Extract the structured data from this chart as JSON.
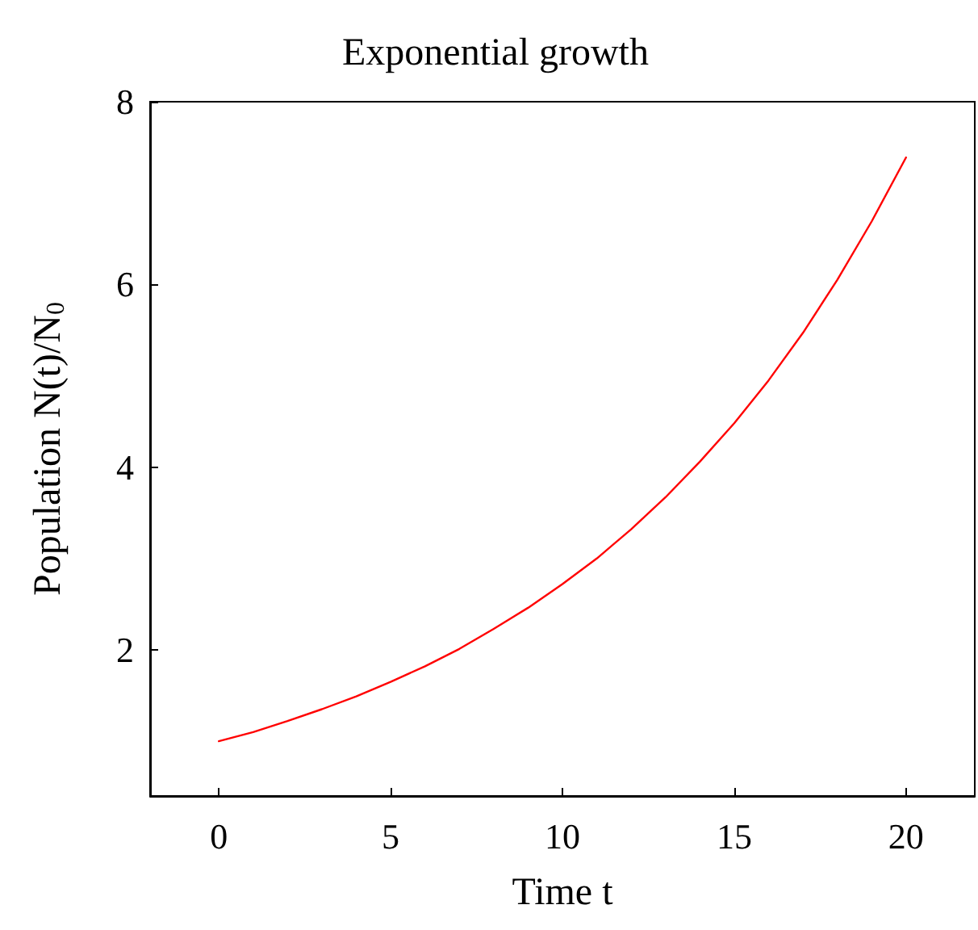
{
  "chart_data": {
    "type": "line",
    "title": "Exponential growth",
    "xlabel": "Time t",
    "ylabel": "Population N(t)/N$_{0}$",
    "x": [
      0,
      1,
      2,
      3,
      4,
      5,
      6,
      7,
      8,
      9,
      10,
      11,
      12,
      13,
      14,
      15,
      16,
      17,
      18,
      19,
      20
    ],
    "series": [
      {
        "color": "#ff0000",
        "values": [
          1,
          1.1,
          1.22,
          1.35,
          1.49,
          1.65,
          1.82,
          2.01,
          2.23,
          2.46,
          2.72,
          3.0,
          3.32,
          3.67,
          4.06,
          4.48,
          4.95,
          5.47,
          6.05,
          6.69,
          7.39
        ]
      }
    ],
    "xlim": [
      -2,
      22
    ],
    "ylim": [
      0.4,
      8
    ],
    "xticks": [
      0,
      5,
      10,
      15,
      20
    ],
    "yticks": [
      2,
      4,
      6,
      8
    ],
    "grid": false,
    "marker": "none",
    "line_style": "solid"
  }
}
